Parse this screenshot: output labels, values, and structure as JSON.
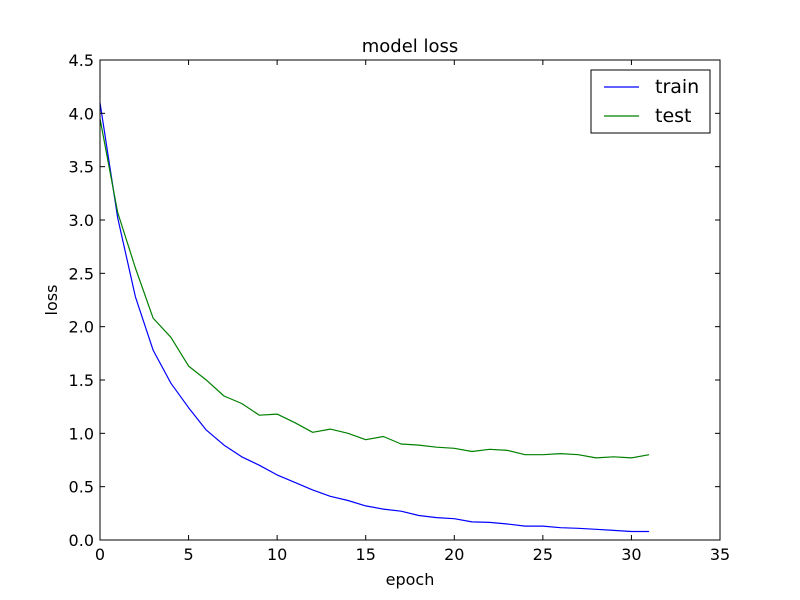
{
  "chart_data": {
    "type": "line",
    "title": "model loss",
    "xlabel": "epoch",
    "ylabel": "loss",
    "xlim": [
      0,
      35
    ],
    "ylim": [
      0,
      4.5
    ],
    "xticks": [
      "0",
      "5",
      "10",
      "15",
      "20",
      "25",
      "30",
      "35"
    ],
    "yticks": [
      "0.0",
      "0.5",
      "1.0",
      "1.5",
      "2.0",
      "2.5",
      "3.0",
      "3.5",
      "4.0",
      "4.5"
    ],
    "grid": false,
    "legend_position": "top-right",
    "x": [
      0,
      1,
      2,
      3,
      4,
      5,
      6,
      7,
      8,
      9,
      10,
      11,
      12,
      13,
      14,
      15,
      16,
      17,
      18,
      19,
      20,
      21,
      22,
      23,
      24,
      25,
      26,
      27,
      28,
      29,
      30,
      31
    ],
    "series": [
      {
        "name": "train",
        "color": "#0000ff",
        "values": [
          4.1,
          3.02,
          2.28,
          1.78,
          1.47,
          1.24,
          1.03,
          0.89,
          0.78,
          0.7,
          0.61,
          0.54,
          0.47,
          0.41,
          0.37,
          0.32,
          0.29,
          0.27,
          0.23,
          0.21,
          0.2,
          0.17,
          0.165,
          0.15,
          0.13,
          0.13,
          0.115,
          0.11,
          0.1,
          0.09,
          0.08,
          0.08
        ]
      },
      {
        "name": "test",
        "color": "#008000",
        "values": [
          3.95,
          3.07,
          2.55,
          2.08,
          1.9,
          1.63,
          1.5,
          1.35,
          1.28,
          1.17,
          1.18,
          1.1,
          1.01,
          1.04,
          1.0,
          0.94,
          0.97,
          0.9,
          0.89,
          0.87,
          0.86,
          0.83,
          0.85,
          0.84,
          0.8,
          0.8,
          0.81,
          0.8,
          0.77,
          0.78,
          0.77,
          0.8
        ]
      }
    ]
  }
}
